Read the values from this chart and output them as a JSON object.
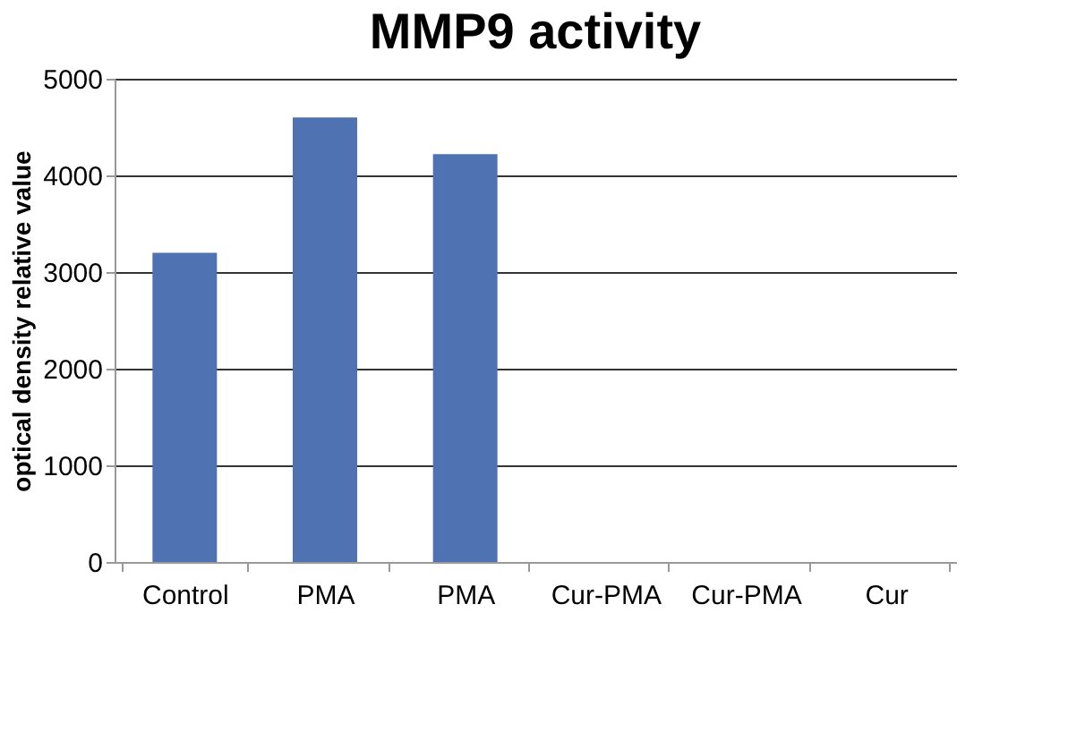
{
  "chart_data": {
    "type": "bar",
    "title": "MMP9 activity",
    "ylabel": "optical density relative value",
    "categories": [
      "Control",
      "PMA",
      "PMA",
      "Cur-PMA",
      "Cur-PMA",
      "Cur"
    ],
    "values": [
      3200,
      4600,
      4220,
      null,
      null,
      null
    ],
    "color": "#4f72b2",
    "ylim": [
      0,
      5000
    ],
    "yticks": [
      0,
      1000,
      2000,
      3000,
      4000,
      5000
    ],
    "grid": "y"
  }
}
